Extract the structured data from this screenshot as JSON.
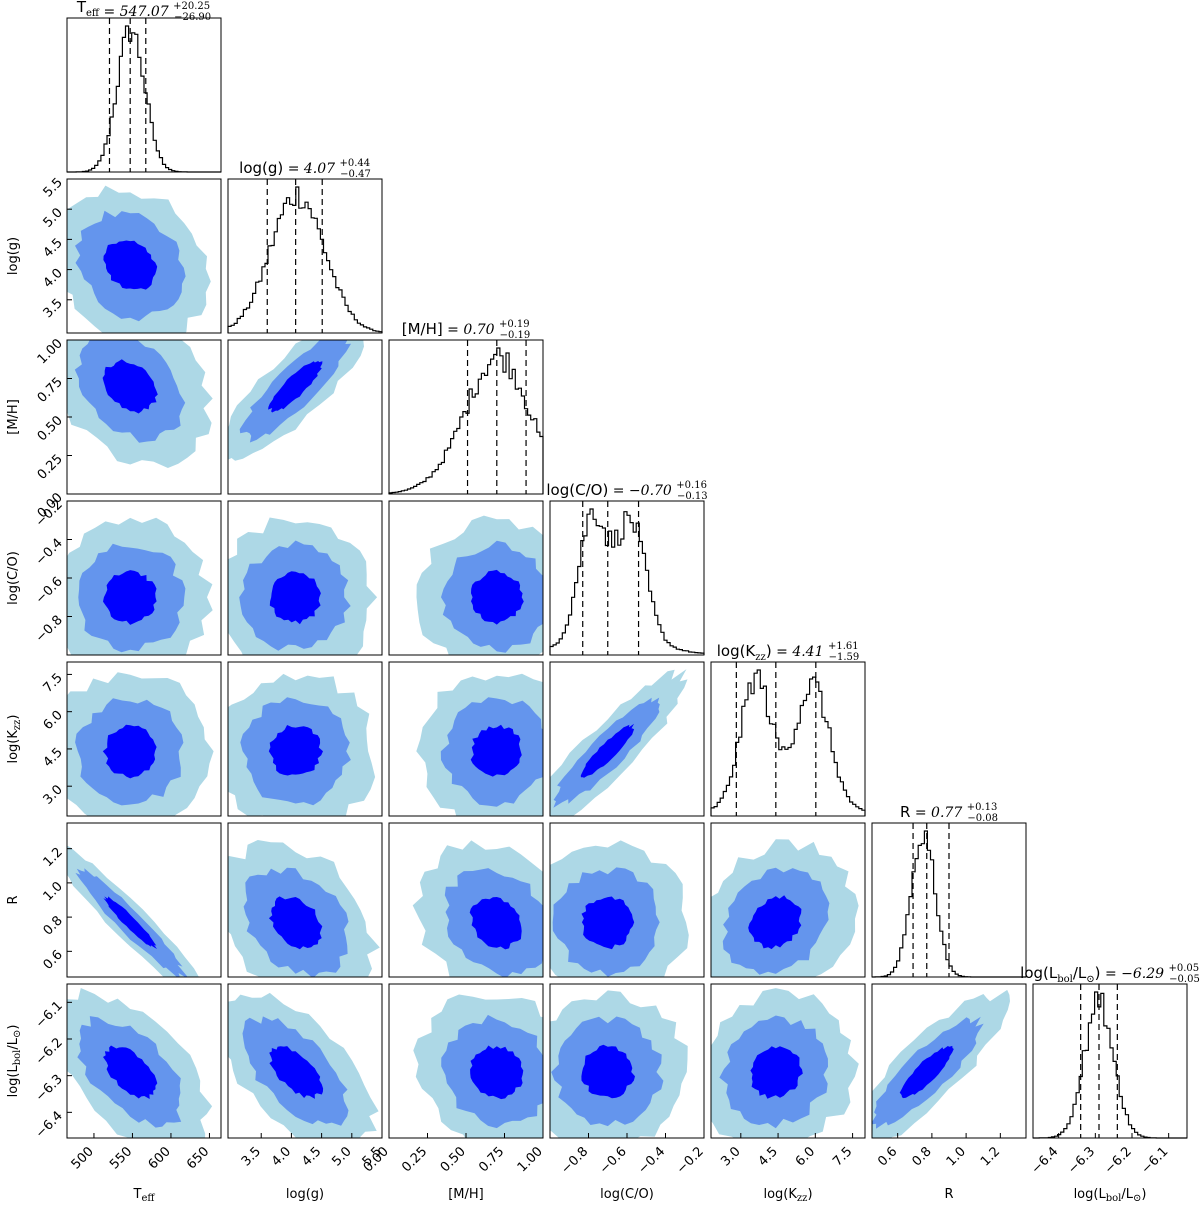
{
  "chart_data": {
    "type": "corner",
    "colors": {
      "level_outer": "#add8e6",
      "level_mid": "#6495ed",
      "level_inner": "#0000ff",
      "hist": "#000000",
      "quantile": "#000000"
    },
    "parameters": [
      {
        "key": "teff",
        "label": "T_eff",
        "label_text": "T",
        "label_sub": "eff",
        "range": [
          465,
          665
        ],
        "ticks": [
          "500",
          "550",
          "600",
          "650"
        ],
        "tick_values": [
          500,
          550,
          600,
          650
        ],
        "median": 547.07,
        "plus": 20.25,
        "minus": 26.9,
        "title_prefix": "T",
        "title_sub": "eff",
        "title_value": "= 547.07",
        "title_plus": "+20.25",
        "title_minus": "−26.90",
        "quantiles": [
          520.17,
          547.07,
          567.32
        ],
        "hist_shape": "unimodal",
        "hist_center": 548,
        "hist_width": 18
      },
      {
        "key": "logg",
        "label": "log(g)",
        "label_text": "log(g)",
        "label_sub": "",
        "range": [
          2.95,
          5.5
        ],
        "ticks": [
          "3.5",
          "4.0",
          "4.5",
          "5.0",
          "5.5"
        ],
        "tick_values": [
          3.5,
          4.0,
          4.5,
          5.0,
          5.5
        ],
        "median": 4.07,
        "plus": 0.44,
        "minus": 0.47,
        "title_prefix": "log(g)",
        "title_sub": "",
        "title_value": "= 4.07",
        "title_plus": "+0.44",
        "title_minus": "−0.47",
        "quantiles": [
          3.6,
          4.07,
          4.51
        ],
        "hist_shape": "unimodal",
        "hist_center": 4.1,
        "hist_width": 0.45
      },
      {
        "key": "mh",
        "label": "[M/H]",
        "label_text": "[M/H]",
        "label_sub": "",
        "range": [
          0.0,
          1.0
        ],
        "ticks": [
          "0.00",
          "0.25",
          "0.50",
          "0.75",
          "1.00"
        ],
        "tick_values": [
          0.0,
          0.25,
          0.5,
          0.75,
          1.0
        ],
        "median": 0.7,
        "plus": 0.19,
        "minus": 0.19,
        "title_prefix": "[M/H]",
        "title_sub": "",
        "title_value": "= 0.70",
        "title_plus": "+0.19",
        "title_minus": "−0.19",
        "quantiles": [
          0.51,
          0.7,
          0.89
        ],
        "hist_shape": "skewed",
        "hist_center": 0.72,
        "hist_width": 0.2
      },
      {
        "key": "co",
        "label": "log(C/O)",
        "label_text": "log(C/O)",
        "label_sub": "",
        "range": [
          -1.0,
          -0.2
        ],
        "ticks": [
          "−0.8",
          "−0.6",
          "−0.4",
          "−0.2"
        ],
        "tick_values": [
          -0.8,
          -0.6,
          -0.4,
          -0.2
        ],
        "median": -0.7,
        "plus": 0.16,
        "minus": 0.13,
        "title_prefix": "log(C/O)",
        "title_sub": "",
        "title_value": "= −0.70",
        "title_plus": "+0.16",
        "title_minus": "−0.13",
        "quantiles": [
          -0.83,
          -0.7,
          -0.54
        ],
        "hist_shape": "bimodal",
        "hist_center": -0.78,
        "hist_center2": -0.58,
        "hist_width": 0.07
      },
      {
        "key": "kzz",
        "label": "log(K_zz)",
        "label_text": "log(K",
        "label_sub": "zz",
        "label_after": ")",
        "range": [
          1.8,
          8.0
        ],
        "ticks": [
          "3.0",
          "4.5",
          "6.0",
          "7.5"
        ],
        "tick_values": [
          3.0,
          4.5,
          6.0,
          7.5
        ],
        "median": 4.41,
        "plus": 1.61,
        "minus": 1.59,
        "title_prefix": "log(K",
        "title_sub": "zz",
        "title_after": ")",
        "title_value": "= 4.41",
        "title_plus": "+1.61",
        "title_minus": "−1.59",
        "quantiles": [
          2.82,
          4.41,
          6.02
        ],
        "hist_shape": "bimodal",
        "hist_center": 3.6,
        "hist_center2": 5.9,
        "hist_width": 0.6
      },
      {
        "key": "r",
        "label": "R",
        "label_text": "R",
        "label_sub": "",
        "range": [
          0.45,
          1.35
        ],
        "ticks": [
          "0.6",
          "0.8",
          "1.0",
          "1.2"
        ],
        "tick_values": [
          0.6,
          0.8,
          1.0,
          1.2
        ],
        "median": 0.77,
        "plus": 0.13,
        "minus": 0.08,
        "title_prefix": "R",
        "title_sub": "",
        "title_value": "= 0.77",
        "title_plus": "+0.13",
        "title_minus": "−0.08",
        "quantiles": [
          0.69,
          0.77,
          0.9
        ],
        "hist_shape": "unimodal",
        "hist_center": 0.75,
        "hist_width": 0.07
      },
      {
        "key": "lbol",
        "label": "log(L_bol/L_⊙)",
        "label_text": "log(L",
        "label_sub": "bol",
        "label_after": "/L",
        "label_sub2": "⊙",
        "label_after2": ")",
        "range": [
          -6.47,
          -6.05
        ],
        "ticks": [
          "−6.4",
          "−6.3",
          "−6.2",
          "−6.1"
        ],
        "tick_values": [
          -6.4,
          -6.3,
          -6.2,
          -6.1
        ],
        "median": -6.29,
        "plus": 0.05,
        "minus": 0.05,
        "title_prefix": "log(L",
        "title_sub": "bol",
        "title_after": "/L",
        "title_sub2": "⊙",
        "title_after2": ")",
        "title_value": "= −6.29",
        "title_plus": "+0.05",
        "title_minus": "−0.05",
        "quantiles": [
          -6.34,
          -6.29,
          -6.24
        ],
        "hist_shape": "unimodal",
        "hist_center": -6.29,
        "hist_width": 0.04
      }
    ],
    "y_ticks": {
      "logg": [
        "3.5",
        "4.0",
        "4.5",
        "5.0",
        "5.5"
      ],
      "mh": [
        "0.00",
        "0.25",
        "0.50",
        "0.75",
        "1.00"
      ],
      "co": [
        "−0.8",
        "−0.6",
        "−0.4",
        "−0.2"
      ],
      "kzz": [
        "3.0",
        "4.5",
        "6.0",
        "7.5"
      ],
      "r": [
        "0.6",
        "0.8",
        "1.0",
        "1.2"
      ],
      "lbol": [
        "−6.4",
        "−6.3",
        "−6.2",
        "−6.1"
      ]
    },
    "correlations": {
      "logg|teff": -0.2,
      "mh|teff": -0.3,
      "mh|logg": 0.85,
      "co|teff": 0.0,
      "co|logg": 0.0,
      "co|mh": 0.0,
      "kzz|teff": 0.0,
      "kzz|logg": 0.0,
      "kzz|mh": 0.0,
      "kzz|co": 0.9,
      "r|teff": -0.95,
      "r|logg": -0.3,
      "r|mh": -0.2,
      "r|co": 0.0,
      "r|kzz": 0.2,
      "lbol|teff": -0.55,
      "lbol|logg": -0.6,
      "lbol|mh": -0.1,
      "lbol|co": 0.0,
      "lbol|kzz": 0.1,
      "lbol|r": 0.85
    }
  }
}
